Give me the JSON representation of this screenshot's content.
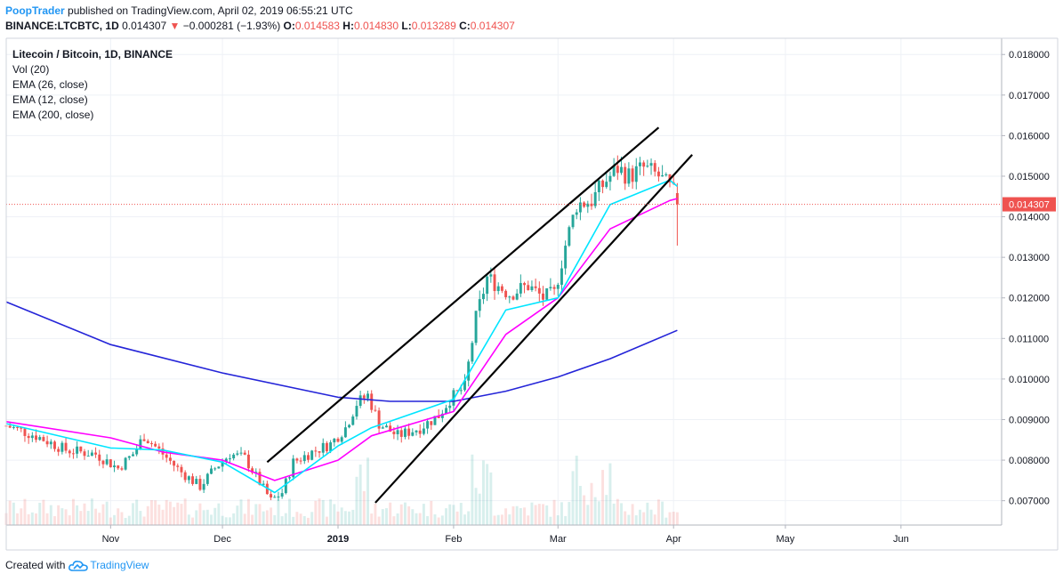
{
  "header": {
    "author": "PoopTrader",
    "published_text": "published on TradingView.com, April 02, 2019 06:55:21 UTC",
    "symbol": "BINANCE:LTCBTC, 1D",
    "last": "0.014307",
    "change": "−0.000281 (−1.93%)",
    "o_label": "O:",
    "o_value": "0.014583",
    "h_label": "H:",
    "h_value": "0.014830",
    "l_label": "L:",
    "l_value": "0.013289",
    "c_label": "C:",
    "c_value": "0.014307"
  },
  "legend": {
    "title": "Litecoin / Bitcoin, 1D, BINANCE",
    "items": [
      "Vol (20)",
      "EMA (26, close)",
      "EMA (12, close)",
      "EMA (200, close)"
    ]
  },
  "footer": {
    "created_with": "Created with",
    "brand": "TradingView"
  },
  "colors": {
    "up": "#26a69a",
    "down": "#ef5350",
    "ema12": "#00e5ff",
    "ema26": "#ff00ff",
    "ema200": "#2424d8",
    "trendline": "#000000",
    "grid": "#eef1f6",
    "price_label_bg": "#ef5350"
  },
  "chart_data": {
    "type": "candlestick",
    "symbol": "LTCBTC",
    "ylim": [
      0.0064,
      0.0184
    ],
    "y_ticks": [
      "0.007000",
      "0.008000",
      "0.009000",
      "0.010000",
      "0.011000",
      "0.012000",
      "0.013000",
      "0.014000",
      "0.015000",
      "0.016000",
      "0.017000",
      "0.018000"
    ],
    "x_ticks": [
      "Nov",
      "Dec",
      "2019",
      "Feb",
      "Mar",
      "Apr",
      "May",
      "Jun"
    ],
    "x_tick_dates": [
      "2018-11-01",
      "2018-12-01",
      "2019-01-01",
      "2019-02-01",
      "2019-03-01",
      "2019-04-01",
      "2019-05-01",
      "2019-06-01"
    ],
    "x_range": [
      "2018-10-04",
      "2019-06-28"
    ],
    "current_price": "0.014307",
    "ohlc_anchor_closes": [
      [
        "2018-10-04",
        0.00885
      ],
      [
        "2018-10-12",
        0.0086
      ],
      [
        "2018-10-20",
        0.00825
      ],
      [
        "2018-10-28",
        0.00815
      ],
      [
        "2018-11-03",
        0.0078
      ],
      [
        "2018-11-07",
        0.00815
      ],
      [
        "2018-11-10",
        0.0086
      ],
      [
        "2018-11-15",
        0.00815
      ],
      [
        "2018-11-20",
        0.0077
      ],
      [
        "2018-11-25",
        0.00735
      ],
      [
        "2018-11-29",
        0.0078
      ],
      [
        "2018-12-03",
        0.00815
      ],
      [
        "2018-12-07",
        0.00805
      ],
      [
        "2018-12-11",
        0.00745
      ],
      [
        "2018-12-14",
        0.007
      ],
      [
        "2018-12-17",
        0.0072
      ],
      [
        "2018-12-20",
        0.00795
      ],
      [
        "2018-12-25",
        0.0082
      ],
      [
        "2018-12-30",
        0.0084
      ],
      [
        "2019-01-03",
        0.0088
      ],
      [
        "2019-01-06",
        0.0094
      ],
      [
        "2019-01-09",
        0.0096
      ],
      [
        "2019-01-12",
        0.0089
      ],
      [
        "2019-01-17",
        0.0086
      ],
      [
        "2019-01-23",
        0.0088
      ],
      [
        "2019-01-28",
        0.0091
      ],
      [
        "2019-01-31",
        0.0095
      ],
      [
        "2019-02-04",
        0.0098
      ],
      [
        "2019-02-07",
        0.0115
      ],
      [
        "2019-02-10",
        0.0125
      ],
      [
        "2019-02-16",
        0.0121
      ],
      [
        "2019-02-21",
        0.0123
      ],
      [
        "2019-02-25",
        0.012
      ],
      [
        "2019-02-28",
        0.0121
      ],
      [
        "2019-03-03",
        0.0133
      ],
      [
        "2019-03-06",
        0.0143
      ],
      [
        "2019-03-10",
        0.0144
      ],
      [
        "2019-03-14",
        0.0149
      ],
      [
        "2019-03-17",
        0.0152
      ],
      [
        "2019-03-20",
        0.015
      ],
      [
        "2019-03-24",
        0.0152
      ],
      [
        "2019-03-28",
        0.015
      ],
      [
        "2019-03-31",
        0.0147
      ],
      [
        "2019-04-01",
        0.01458
      ],
      [
        "2019-04-02",
        0.014307
      ]
    ],
    "last_candle": {
      "date": "2019-04-02",
      "open": 0.014583,
      "high": 0.01483,
      "low": 0.013289,
      "close": 0.014307
    },
    "ema200": [
      [
        "2018-10-04",
        0.0119
      ],
      [
        "2018-11-01",
        0.01085
      ],
      [
        "2018-12-01",
        0.01015
      ],
      [
        "2019-01-01",
        0.00955
      ],
      [
        "2019-01-15",
        0.00945
      ],
      [
        "2019-02-01",
        0.00945
      ],
      [
        "2019-02-15",
        0.0097
      ],
      [
        "2019-03-01",
        0.01005
      ],
      [
        "2019-03-15",
        0.0105
      ],
      [
        "2019-04-02",
        0.0112
      ]
    ],
    "ema26": [
      [
        "2018-10-04",
        0.00895
      ],
      [
        "2018-11-01",
        0.00855
      ],
      [
        "2018-11-15",
        0.0082
      ],
      [
        "2018-12-01",
        0.008
      ],
      [
        "2018-12-15",
        0.0075
      ],
      [
        "2019-01-01",
        0.008
      ],
      [
        "2019-01-10",
        0.0086
      ],
      [
        "2019-02-01",
        0.0092
      ],
      [
        "2019-02-15",
        0.0111
      ],
      [
        "2019-03-01",
        0.012
      ],
      [
        "2019-03-15",
        0.0137
      ],
      [
        "2019-03-31",
        0.0144
      ],
      [
        "2019-04-02",
        0.01445
      ]
    ],
    "ema12": [
      [
        "2018-10-04",
        0.0089
      ],
      [
        "2018-11-01",
        0.0083
      ],
      [
        "2018-11-15",
        0.00825
      ],
      [
        "2018-12-01",
        0.00795
      ],
      [
        "2018-12-15",
        0.0072
      ],
      [
        "2019-01-01",
        0.00835
      ],
      [
        "2019-01-10",
        0.0088
      ],
      [
        "2019-02-01",
        0.0095
      ],
      [
        "2019-02-15",
        0.0117
      ],
      [
        "2019-03-01",
        0.012
      ],
      [
        "2019-03-15",
        0.0143
      ],
      [
        "2019-03-31",
        0.0149
      ],
      [
        "2019-04-02",
        0.01475
      ]
    ],
    "trendlines": [
      {
        "start": [
          "2018-12-13",
          0.00795
        ],
        "end": [
          "2019-03-28",
          0.0162
        ]
      },
      {
        "start": [
          "2019-01-11",
          0.00695
        ],
        "end": [
          "2019-04-06",
          0.01553
        ]
      }
    ]
  }
}
